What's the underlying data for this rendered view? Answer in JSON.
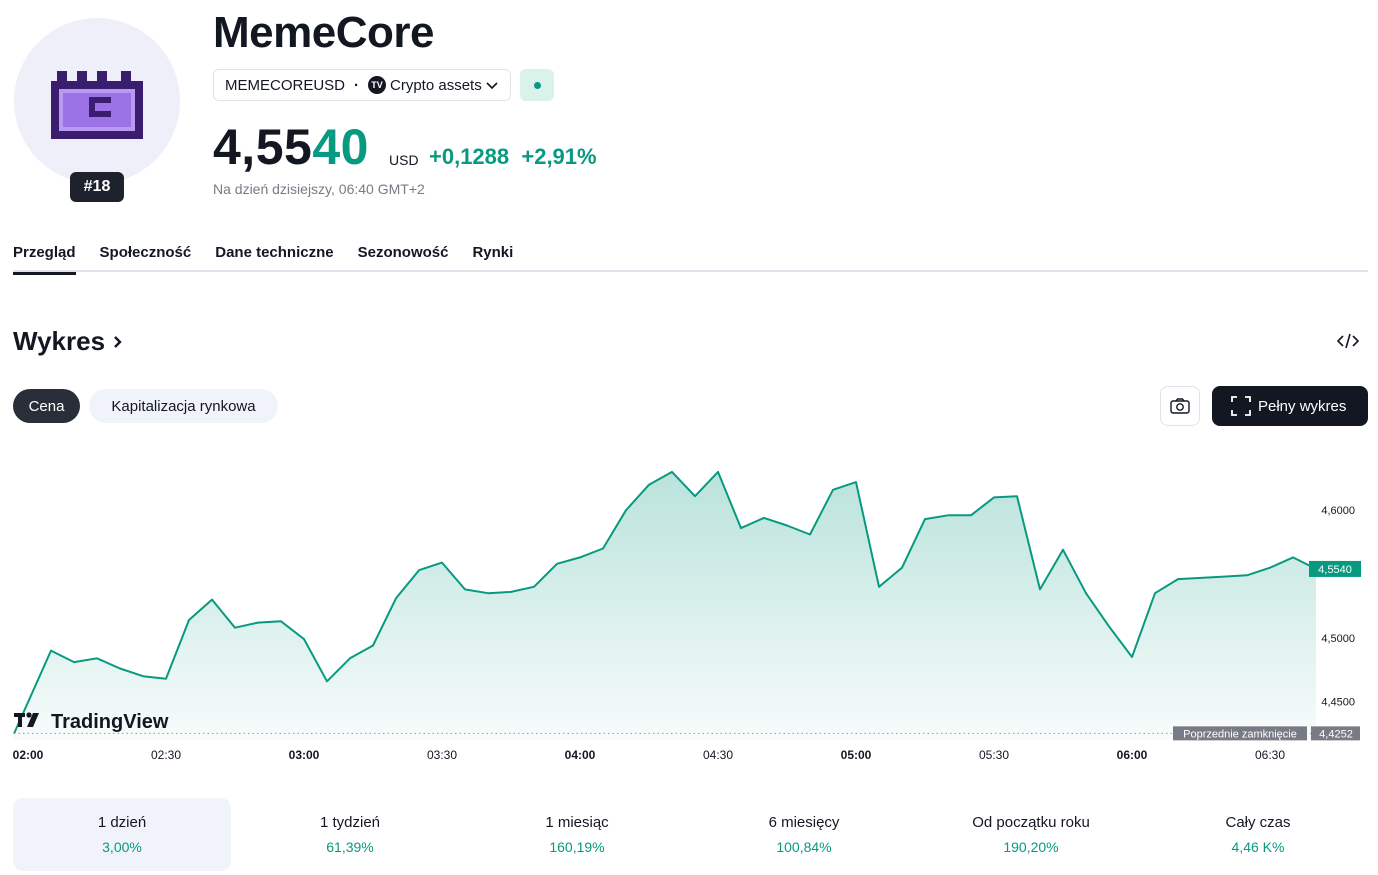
{
  "asset": {
    "name": "MemeCore",
    "symbol": "MEMECOREUSD",
    "category": "Crypto assets",
    "rank": "#18",
    "price_prefix": "4,55",
    "price_suffix": "40",
    "currency": "USD",
    "change": "+0,1288  +2,91%",
    "as_of": "Na dzień dzisiejszy, 06:40 GMT+2"
  },
  "tabs": [
    {
      "label": "Przegląd"
    },
    {
      "label": "Społeczność"
    },
    {
      "label": "Dane techniczne"
    },
    {
      "label": "Sezonowość"
    },
    {
      "label": "Rynki"
    }
  ],
  "chart_section": {
    "title": "Wykres",
    "pill_price": "Cena",
    "pill_cap": "Kapitalizacja rynkowa",
    "fullscreen": "Pełny wykres",
    "brand": "TradingView"
  },
  "colors": {
    "accent": "#089981",
    "dark": "#131722"
  },
  "chart_data": {
    "type": "area",
    "x_ticks": [
      "02:00",
      "02:30",
      "03:00",
      "03:30",
      "04:00",
      "04:30",
      "05:00",
      "05:30",
      "06:00",
      "06:30"
    ],
    "x_ticks_bold": [
      "02:00",
      "03:00",
      "04:00",
      "05:00",
      "06:00"
    ],
    "y_ticks": [
      "4,6000",
      "4,5000",
      "4,4500"
    ],
    "ylim": [
      4.42,
      4.655
    ],
    "last_price": 4.554,
    "last_price_label": "4,5540",
    "previous_close": 4.4252,
    "previous_close_label": "4,4252",
    "previous_close_text": "Poprzednie zamknięcie",
    "series": [
      {
        "x": [
          "02:00",
          "02:05",
          "02:10",
          "02:15",
          "02:20",
          "02:25",
          "02:30",
          "02:35",
          "02:40",
          "02:45",
          "02:50",
          "02:55",
          "03:00",
          "03:05",
          "03:10",
          "03:15",
          "03:20",
          "03:25",
          "03:30",
          "03:35",
          "03:40",
          "03:45",
          "03:50",
          "03:55",
          "04:00",
          "04:05",
          "04:10",
          "04:15",
          "04:20",
          "04:25",
          "04:30",
          "04:35",
          "04:40",
          "04:45",
          "04:50",
          "04:55",
          "05:00",
          "05:05",
          "05:10",
          "05:15",
          "05:20",
          "05:25",
          "05:30",
          "05:35",
          "05:40",
          "05:45",
          "05:50",
          "05:55",
          "06:00",
          "06:05",
          "06:10",
          "06:15",
          "06:20",
          "06:25",
          "06:30",
          "06:35",
          "06:40"
        ],
        "values": [
          4.425,
          4.49,
          4.481,
          4.484,
          4.476,
          4.47,
          4.468,
          4.514,
          4.53,
          4.508,
          4.512,
          4.513,
          4.499,
          4.466,
          4.484,
          4.494,
          4.531,
          4.553,
          4.559,
          4.538,
          4.535,
          4.536,
          4.54,
          4.558,
          4.563,
          4.57,
          4.6,
          4.62,
          4.63,
          4.611,
          4.63,
          4.586,
          4.594,
          4.588,
          4.581,
          4.616,
          4.622,
          4.54,
          4.555,
          4.593,
          4.596,
          4.596,
          4.61,
          4.611,
          4.538,
          4.569,
          4.535,
          4.509,
          4.485,
          4.535,
          4.546,
          4.547,
          4.548,
          4.549,
          4.555,
          4.563,
          4.554
        ]
      }
    ]
  },
  "performance": [
    {
      "label": "1 dzień",
      "value": "3,00%"
    },
    {
      "label": "1 tydzień",
      "value": "61,39%"
    },
    {
      "label": "1 miesiąc",
      "value": "160,19%"
    },
    {
      "label": "6 miesięcy",
      "value": "100,84%"
    },
    {
      "label": "Od początku roku",
      "value": "190,20%"
    },
    {
      "label": "Cały czas",
      "value": "4,46 K%"
    }
  ]
}
